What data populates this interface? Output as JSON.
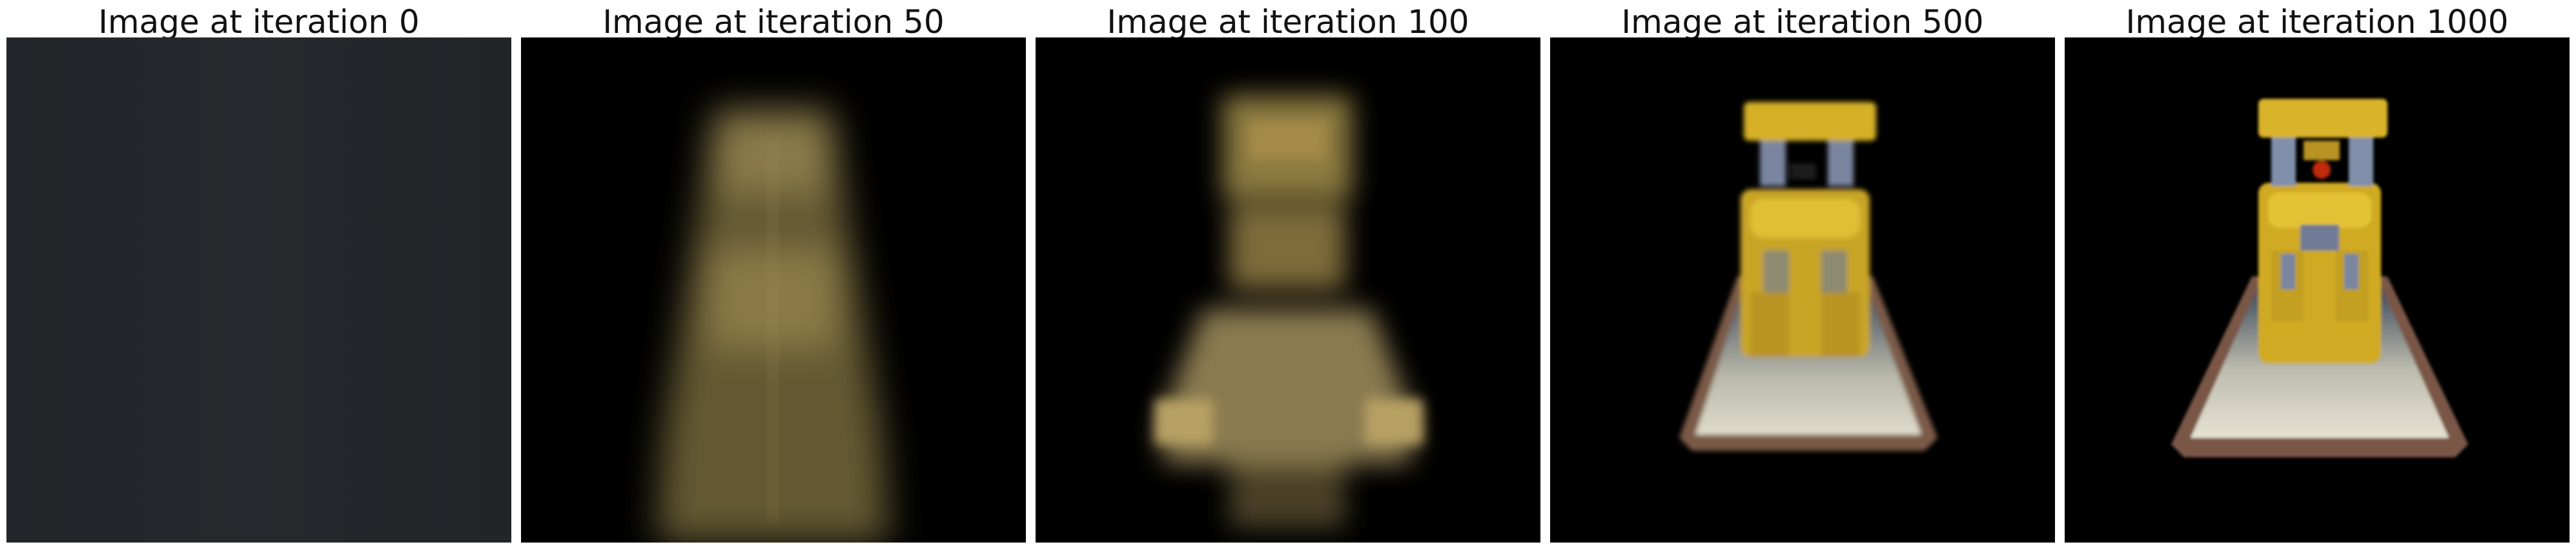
{
  "panels": [
    {
      "title": "Image at iteration 0"
    },
    {
      "title": "Image at iteration 50"
    },
    {
      "title": "Image at iteration 100"
    },
    {
      "title": "Image at iteration 500"
    },
    {
      "title": "Image at iteration 1000"
    }
  ],
  "colors": {
    "background": "#ffffff",
    "gray_init": "#25272b",
    "black": "#000000",
    "blur_tan": "#8a7a4a",
    "toy_yellow": "#d8b322",
    "toy_blue": "#6f7fa0",
    "base_white": "#d8d5c5",
    "base_brown": "#7a5a48",
    "toy_red": "#c02a10"
  }
}
